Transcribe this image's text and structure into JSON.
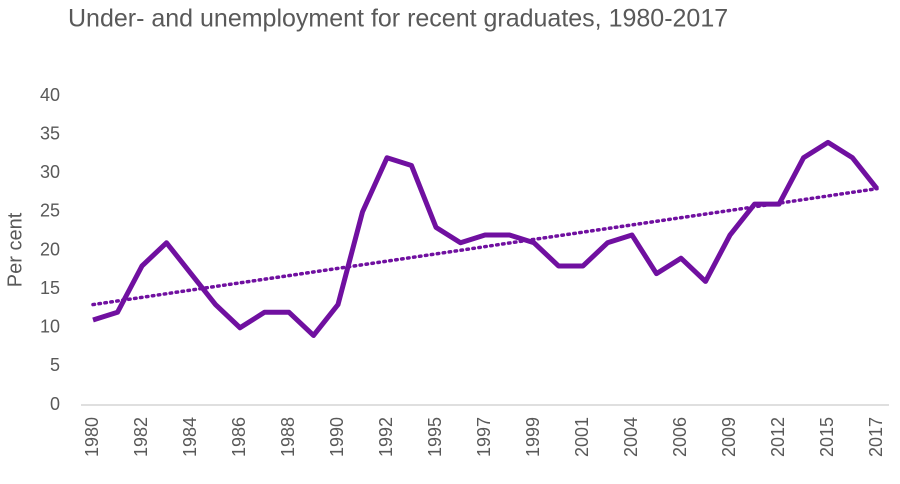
{
  "chart_data": {
    "type": "line",
    "title": "Under- and unemployment for recent graduates, 1980-2017",
    "y_label": "Per cent",
    "categories": [
      "1980",
      null,
      "1982",
      null,
      "1984",
      null,
      "1986",
      null,
      "1988",
      null,
      "1990",
      null,
      "1992",
      null,
      "1995",
      null,
      "1997",
      null,
      "1999",
      null,
      "2001",
      null,
      "2004",
      null,
      "2006",
      null,
      "2009",
      null,
      "2012",
      null,
      "2015",
      null,
      "2017"
    ],
    "series": [
      {
        "color": "#7010a0",
        "values": [
          11,
          12,
          18,
          21,
          17,
          13,
          10,
          12,
          12,
          9,
          13,
          25,
          32,
          31,
          23,
          21,
          22,
          22,
          21,
          18,
          18,
          21,
          22,
          17,
          19,
          16,
          22,
          26,
          26,
          32,
          34,
          32,
          28
        ]
      }
    ],
    "trendline": {
      "color": "#7010a0",
      "values": [
        13,
        28
      ]
    },
    "ylim": [
      0,
      40
    ],
    "yticks": [
      0,
      5,
      10,
      15,
      20,
      25,
      30,
      35,
      40
    ],
    "grid": false
  }
}
